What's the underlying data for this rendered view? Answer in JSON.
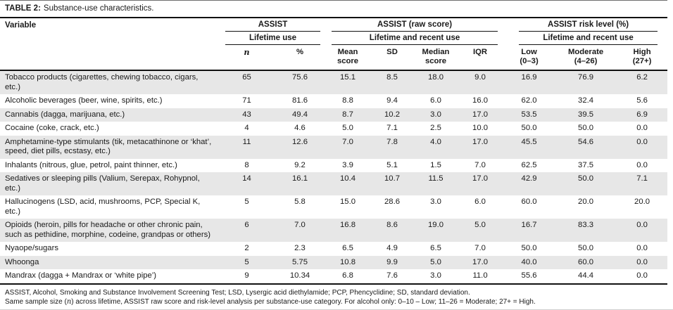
{
  "colors": {
    "stripe": "#e7e7e7",
    "rule_dark": "#111111",
    "rule_light": "#6e6e6e",
    "text": "#1a1a1a"
  },
  "table": {
    "title_label": "TABLE 2:",
    "title_text": "Substance-use characteristics.",
    "variable_header": "Variable",
    "groups": [
      {
        "label": "ASSIST",
        "sub": "Lifetime use"
      },
      {
        "label": "ASSIST (raw score)",
        "sub": "Lifetime and recent use"
      },
      {
        "label": "ASSIST risk level (%)",
        "sub": "Lifetime and recent use"
      }
    ],
    "columns": [
      "n",
      "%",
      "Mean\nscore",
      "SD",
      "Median\nscore",
      "IQR",
      "Low\n(0–3)",
      "Moderate\n(4–26)",
      "High\n(27+)"
    ],
    "rows": [
      {
        "variable": "Tobacco products (cigarettes, chewing tobacco, cigars, etc.)",
        "values": [
          "65",
          "75.6",
          "15.1",
          "8.5",
          "18.0",
          "9.0",
          "16.9",
          "76.9",
          "6.2"
        ]
      },
      {
        "variable": "Alcoholic beverages (beer, wine, spirits, etc.)",
        "values": [
          "71",
          "81.6",
          "8.8",
          "9.4",
          "6.0",
          "16.0",
          "62.0",
          "32.4",
          "5.6"
        ]
      },
      {
        "variable": "Cannabis (dagga, marijuana, etc.)",
        "values": [
          "43",
          "49.4",
          "8.7",
          "10.2",
          "3.0",
          "17.0",
          "53.5",
          "39.5",
          "6.9"
        ]
      },
      {
        "variable": "Cocaine (coke, crack, etc.)",
        "values": [
          "4",
          "4.6",
          "5.0",
          "7.1",
          "2.5",
          "10.0",
          "50.0",
          "50.0",
          "0.0"
        ]
      },
      {
        "variable": "Amphetamine-type stimulants (tik, metacathinone or ‘khat’, speed, diet pills, ecstasy, etc.)",
        "values": [
          "11",
          "12.6",
          "7.0",
          "7.8",
          "4.0",
          "17.0",
          "45.5",
          "54.6",
          "0.0"
        ]
      },
      {
        "variable": "Inhalants (nitrous, glue, petrol, paint thinner, etc.)",
        "values": [
          "8",
          "9.2",
          "3.9",
          "5.1",
          "1.5",
          "7.0",
          "62.5",
          "37.5",
          "0.0"
        ]
      },
      {
        "variable": "Sedatives or sleeping pills (Valium, Serepax, Rohypnol, etc.)",
        "values": [
          "14",
          "16.1",
          "10.4",
          "10.7",
          "11.5",
          "17.0",
          "42.9",
          "50.0",
          "7.1"
        ]
      },
      {
        "variable": "Hallucinogens (LSD, acid, mushrooms, PCP, Special K, etc.)",
        "values": [
          "5",
          "5.8",
          "15.0",
          "28.6",
          "3.0",
          "6.0",
          "60.0",
          "20.0",
          "20.0"
        ]
      },
      {
        "variable": "Opioids (heroin, pills for headache or other chronic pain, such as pethidine, morphine, codeine, grandpas or others)",
        "values": [
          "6",
          "7.0",
          "16.8",
          "8.6",
          "19.0",
          "5.0",
          "16.7",
          "83.3",
          "0.0"
        ]
      },
      {
        "variable": "Nyaope/sugars",
        "values": [
          "2",
          "2.3",
          "6.5",
          "4.9",
          "6.5",
          "7.0",
          "50.0",
          "50.0",
          "0.0"
        ]
      },
      {
        "variable": "Whoonga",
        "values": [
          "5",
          "5.75",
          "10.8",
          "9.9",
          "5.0",
          "17.0",
          "40.0",
          "60.0",
          "0.0"
        ]
      },
      {
        "variable": "Mandrax (dagga + Mandrax or ‘white pipe’)",
        "values": [
          "9",
          "10.34",
          "6.8",
          "7.6",
          "3.0",
          "11.0",
          "55.6",
          "44.4",
          "0.0"
        ]
      }
    ],
    "footnote1": "ASSIST, Alcohol, Smoking and Substance Involvement Screening Test; LSD, Lysergic acid diethylamide; PCP, Phencyclidine; SD, standard deviation.",
    "footnote2_pre": "Same sample size (",
    "footnote2_italic": "n",
    "footnote2_post": ") across lifetime, ASSIST raw score and risk-level analysis per substance-use category. For alcohol only: 0–10 – Low; 11–26 = Moderate; 27+ = High."
  }
}
